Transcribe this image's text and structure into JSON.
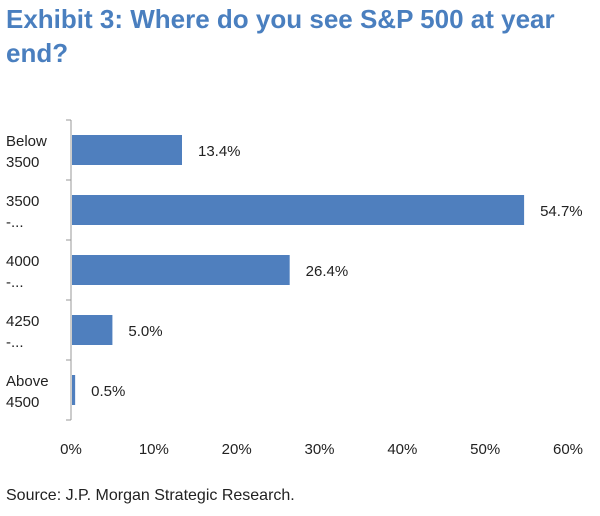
{
  "title": "Exhibit 3: Where do you see S&P 500 at year end?",
  "source": "Source: J.P. Morgan Strategic Research.",
  "colors": {
    "bar": "#4f7fbe",
    "title": "#4a7fbf",
    "axis": "#999999",
    "text": "#222222"
  },
  "chart_data": {
    "type": "bar",
    "orientation": "horizontal",
    "title": "Exhibit 3: Where do you see S&P 500 at year end?",
    "xlabel": "",
    "ylabel": "",
    "categories": [
      [
        "Below",
        "3500"
      ],
      [
        "3500",
        "-..."
      ],
      [
        "4000",
        "-..."
      ],
      [
        "4250",
        "-..."
      ],
      [
        "Above",
        "4500"
      ]
    ],
    "values": [
      13.4,
      54.7,
      26.4,
      5.0,
      0.5
    ],
    "data_labels": [
      "13.4%",
      "54.7%",
      "26.4%",
      "5.0%",
      "0.5%"
    ],
    "xlim": [
      0,
      60
    ],
    "xticks": [
      0,
      10,
      20,
      30,
      40,
      50,
      60
    ],
    "xtick_labels": [
      "0%",
      "10%",
      "20%",
      "30%",
      "40%",
      "50%",
      "60%"
    ],
    "grid": false,
    "legend": "none"
  }
}
